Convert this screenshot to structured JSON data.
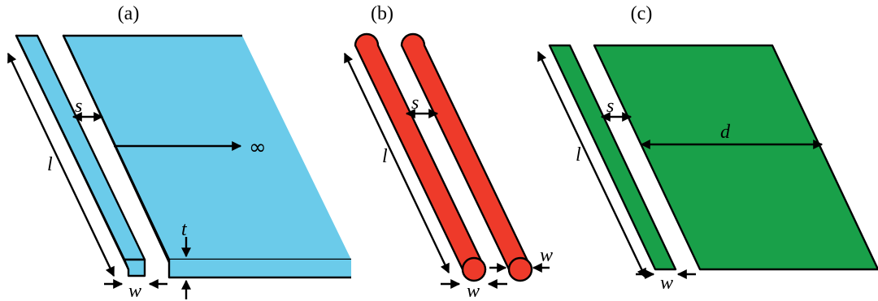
{
  "figure": {
    "panels": [
      {
        "id": "a",
        "label": "(a)",
        "fill_color": "#6BCBEA",
        "symbols": {
          "l": "l",
          "s": "s",
          "w": "w",
          "t": "t",
          "infinity": "∞"
        }
      },
      {
        "id": "b",
        "label": "(b)",
        "fill_color": "#EE3A2A",
        "symbols": {
          "l": "l",
          "s": "s",
          "w_right": "w",
          "w_bottom": "w"
        }
      },
      {
        "id": "c",
        "label": "(c)",
        "fill_color": "#19A049",
        "symbols": {
          "l": "l",
          "s": "s",
          "d": "d",
          "w": "w"
        }
      }
    ],
    "outline_color": "#000000"
  }
}
